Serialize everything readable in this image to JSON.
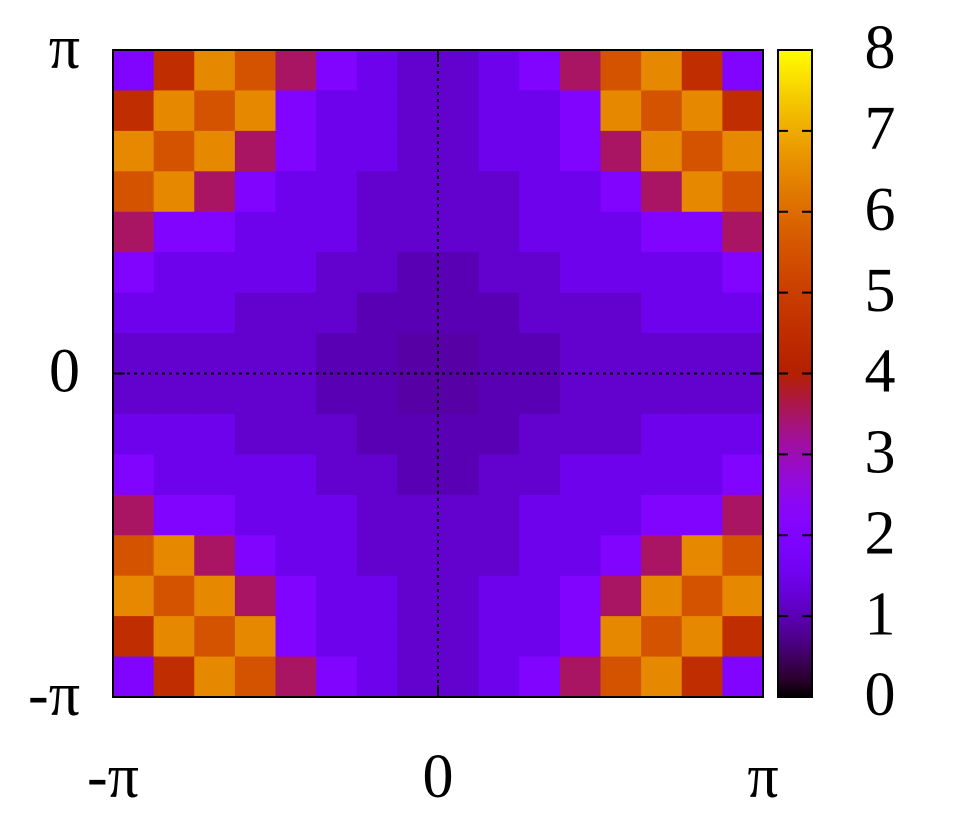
{
  "chart_data": {
    "type": "heatmap",
    "xlim": [
      -3.14159,
      3.14159
    ],
    "ylim": [
      -3.14159,
      3.14159
    ],
    "xticks": [
      {
        "value": -3.14159,
        "label": "-π"
      },
      0,
      {
        "value": 3.14159,
        "label": "π"
      }
    ],
    "yticks": [
      {
        "value": -3.14159,
        "label": "-π"
      },
      0,
      {
        "value": 3.14159,
        "label": "π"
      }
    ],
    "zlim": [
      0,
      8
    ],
    "zticks": [
      0,
      1,
      2,
      3,
      4,
      5,
      6,
      7,
      8
    ],
    "colormap": "gnuplot",
    "zeroaxis": true,
    "z": [
      [
        2,
        4.5,
        6.5,
        5.5,
        3.5,
        2,
        1.5,
        1.2,
        1.2,
        1.5,
        2,
        3.5,
        5.5,
        6.5,
        4.5,
        2
      ],
      [
        4.5,
        6.5,
        5.5,
        6.5,
        2,
        1.5,
        1.5,
        1.2,
        1.2,
        1.5,
        1.5,
        2,
        6.5,
        5.5,
        6.5,
        4.5
      ],
      [
        6.5,
        5.5,
        6.5,
        3.5,
        2,
        1.5,
        1.5,
        1.2,
        1.2,
        1.5,
        1.5,
        2,
        3.5,
        6.5,
        5.5,
        6.5
      ],
      [
        5.5,
        6.5,
        3.5,
        2,
        1.5,
        1.5,
        1.2,
        1.2,
        1.2,
        1.2,
        1.5,
        1.5,
        2,
        3.5,
        6.5,
        5.5
      ],
      [
        3.5,
        2,
        2,
        1.5,
        1.5,
        1.5,
        1.2,
        1.2,
        1.2,
        1.2,
        1.5,
        1.5,
        1.5,
        2,
        2,
        3.5
      ],
      [
        2,
        1.5,
        1.5,
        1.5,
        1.5,
        1.2,
        1.2,
        1,
        1,
        1.2,
        1.2,
        1.5,
        1.5,
        1.5,
        1.5,
        2
      ],
      [
        1.5,
        1.5,
        1.5,
        1.2,
        1.2,
        1.2,
        1,
        1,
        1,
        1,
        1.2,
        1.2,
        1.2,
        1.5,
        1.5,
        1.5
      ],
      [
        1.2,
        1.2,
        1.2,
        1.2,
        1.2,
        1,
        1,
        0.9,
        0.9,
        1,
        1,
        1.2,
        1.2,
        1.2,
        1.2,
        1.2
      ],
      [
        1.2,
        1.2,
        1.2,
        1.2,
        1.2,
        1,
        1,
        0.9,
        0.9,
        1,
        1,
        1.2,
        1.2,
        1.2,
        1.2,
        1.2
      ],
      [
        1.5,
        1.5,
        1.5,
        1.2,
        1.2,
        1.2,
        1,
        1,
        1,
        1,
        1.2,
        1.2,
        1.2,
        1.5,
        1.5,
        1.5
      ],
      [
        2,
        1.5,
        1.5,
        1.5,
        1.5,
        1.2,
        1.2,
        1,
        1,
        1.2,
        1.2,
        1.5,
        1.5,
        1.5,
        1.5,
        2
      ],
      [
        3.5,
        2,
        2,
        1.5,
        1.5,
        1.5,
        1.2,
        1.2,
        1.2,
        1.2,
        1.5,
        1.5,
        1.5,
        2,
        2,
        3.5
      ],
      [
        5.5,
        6.5,
        3.5,
        2,
        1.5,
        1.5,
        1.2,
        1.2,
        1.2,
        1.2,
        1.5,
        1.5,
        2,
        3.5,
        6.5,
        5.5
      ],
      [
        6.5,
        5.5,
        6.5,
        3.5,
        2,
        1.5,
        1.5,
        1.2,
        1.2,
        1.5,
        1.5,
        2,
        3.5,
        6.5,
        5.5,
        6.5
      ],
      [
        4.5,
        6.5,
        5.5,
        6.5,
        2,
        1.5,
        1.5,
        1.2,
        1.2,
        1.5,
        1.5,
        2,
        6.5,
        5.5,
        6.5,
        4.5
      ],
      [
        2,
        4.5,
        6.5,
        5.5,
        3.5,
        2,
        1.5,
        1.2,
        1.2,
        1.5,
        2,
        3.5,
        5.5,
        6.5,
        4.5,
        2
      ]
    ]
  }
}
